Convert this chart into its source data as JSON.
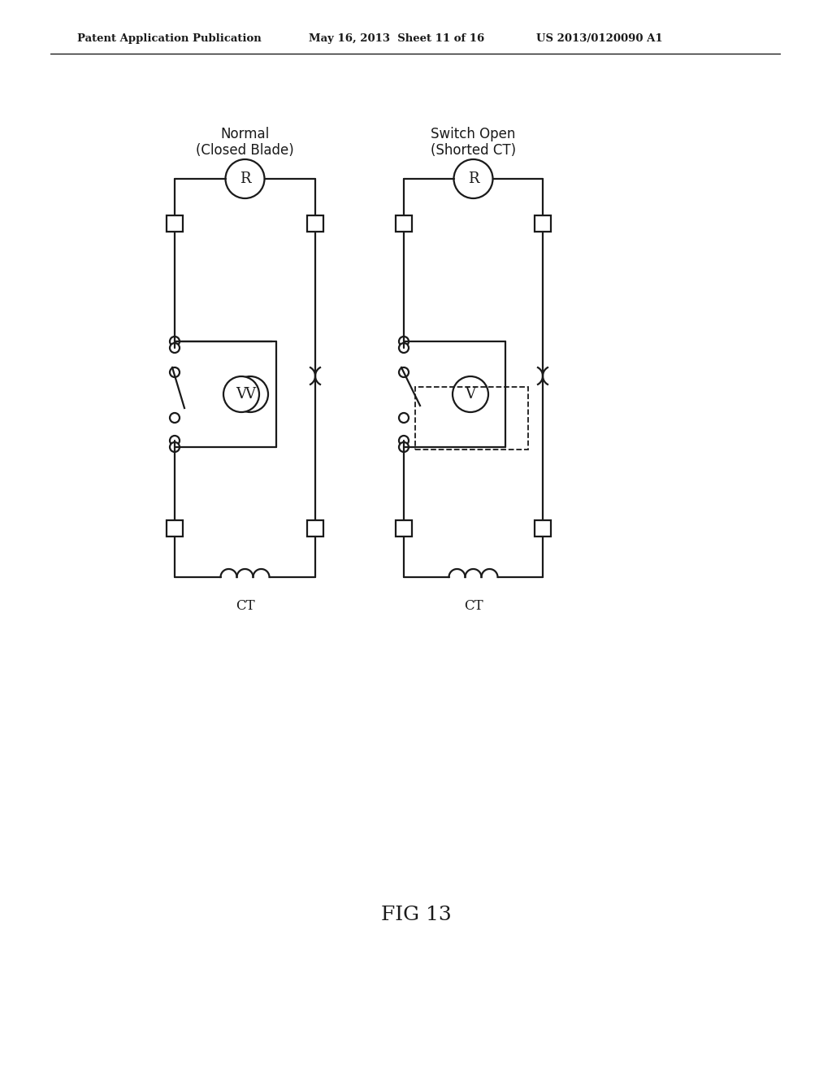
{
  "title": "FIG 13",
  "header_left": "Patent Application Publication",
  "header_mid": "May 16, 2013  Sheet 11 of 16",
  "header_right": "US 2013/0120090 A1",
  "label_left_top": "Normal",
  "label_left_top2": "(Closed Blade)",
  "label_right_top": "Switch Open",
  "label_right_top2": "(Shorted CT)",
  "label_ct_left": "CT",
  "label_ct_right": "CT",
  "bg_color": "#ffffff",
  "line_color": "#1a1a1a",
  "line_width": 1.6,
  "fig_title": "FIG 13"
}
